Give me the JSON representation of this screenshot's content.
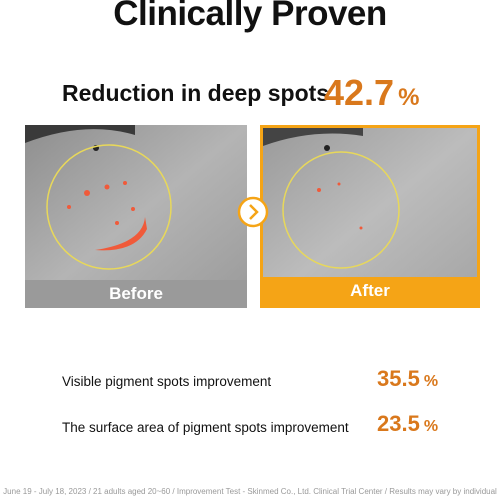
{
  "header": {
    "title": "Clinically Proven"
  },
  "headline": {
    "label": "Reduction in deep spots",
    "value": 42.7,
    "unit": "%"
  },
  "photos": {
    "before": "Before",
    "after": "After"
  },
  "stats": [
    {
      "label": "Visible pigment spots improvement",
      "value": 35.5,
      "unit": "%"
    },
    {
      "label": "The surface area of pigment spots improvement",
      "value": 23.5,
      "unit": "%"
    }
  ],
  "footnote": "June 19 - July 18, 2023 / 21 adults aged 20~60 / Improvement Test - Skinmed Co., Ltd. Clinical Trial Center / Results may vary by individual"
}
